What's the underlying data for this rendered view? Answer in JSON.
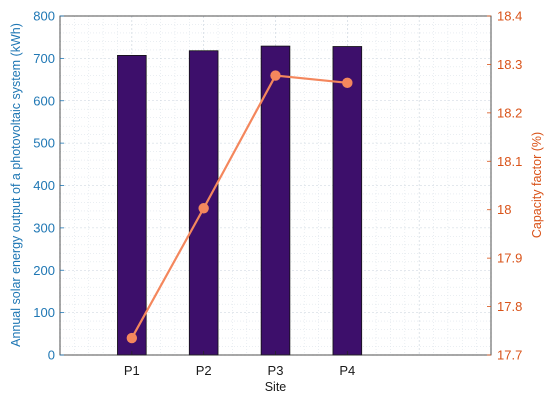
{
  "chart_data": {
    "type": "bar",
    "title": "",
    "xlabel": "Site",
    "categories": [
      "P1",
      "P2",
      "P3",
      "P4"
    ],
    "series": [
      {
        "name": "",
        "type": "bar",
        "axis": "left",
        "values": [
          707,
          718,
          729,
          728
        ],
        "color": "#3d0f6b"
      },
      {
        "name": "",
        "type": "line",
        "axis": "right",
        "values": [
          17.735,
          18.003,
          18.277,
          18.262
        ],
        "color": "#f4875d"
      }
    ],
    "ylabel_left": "Annual solar energy output of a photovoltaic system (kWh)",
    "ylim_left": [
      0,
      800
    ],
    "yticks_left": [
      0,
      100,
      200,
      300,
      400,
      500,
      600,
      700,
      800
    ],
    "ylabel_right": "Capacity factor (%)",
    "ylim_right": [
      17.7,
      18.4
    ],
    "yticks_right": [
      "17.7",
      "17.8",
      "17.9",
      "18",
      "18.1",
      "18.2",
      "18.3",
      "18.4"
    ],
    "grid": "on (major and minor, dotted)",
    "colors": {
      "left_axis": "#1f77b4",
      "right_axis": "#d95319",
      "bar_fill": "#3d0f6b",
      "line": "#f4875d"
    }
  }
}
